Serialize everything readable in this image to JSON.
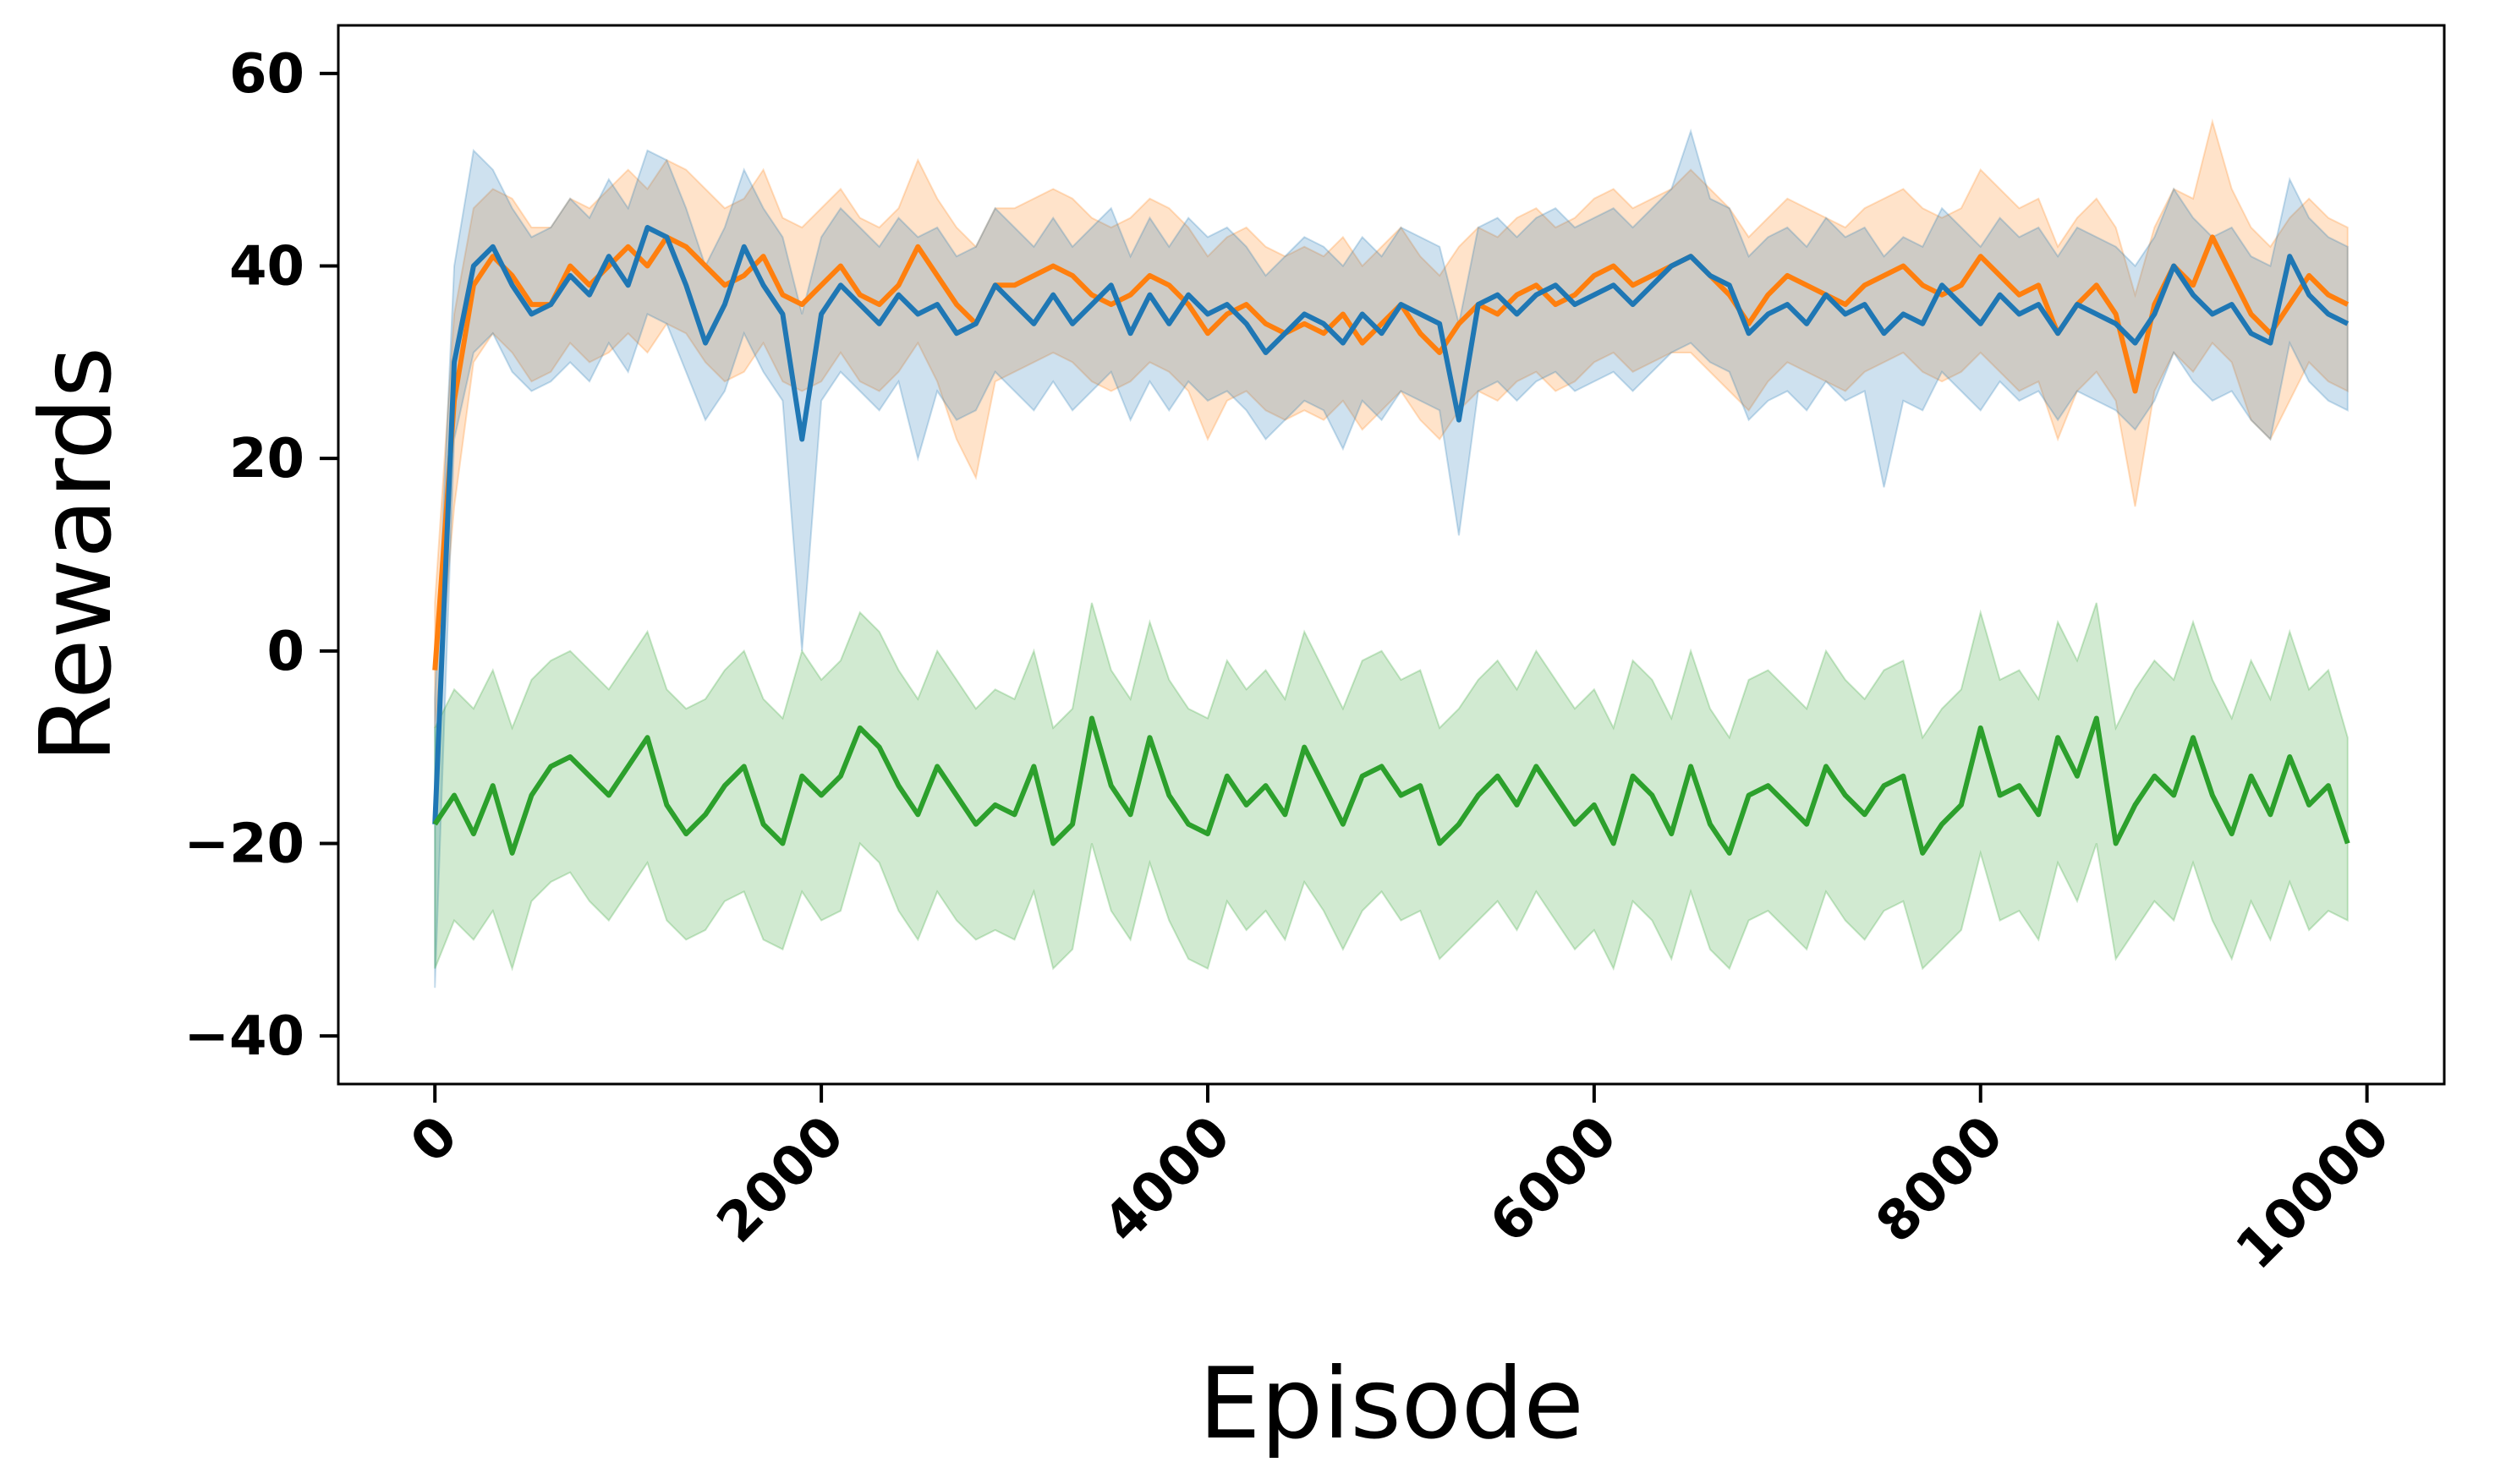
{
  "chart_data": {
    "type": "line",
    "title": "",
    "xlabel": "Episode",
    "ylabel": "Rewards",
    "xlim": [
      -500,
      10400
    ],
    "ylim": [
      -45,
      65
    ],
    "x_ticks": [
      0,
      2000,
      4000,
      6000,
      8000,
      10000
    ],
    "x_tick_labels": [
      "0",
      "2000",
      "4000",
      "6000",
      "8000",
      "10000"
    ],
    "y_ticks": [
      -40,
      -20,
      0,
      20,
      40,
      60
    ],
    "y_tick_labels": [
      "−40",
      "−20",
      "0",
      "20",
      "40",
      "60"
    ],
    "grid": false,
    "legend": "none",
    "x": [
      0,
      100,
      200,
      300,
      400,
      500,
      600,
      700,
      800,
      900,
      1000,
      1100,
      1200,
      1300,
      1400,
      1500,
      1600,
      1700,
      1800,
      1900,
      2000,
      2100,
      2200,
      2300,
      2400,
      2500,
      2600,
      2700,
      2800,
      2900,
      3000,
      3100,
      3200,
      3300,
      3400,
      3500,
      3600,
      3700,
      3800,
      3900,
      4000,
      4100,
      4200,
      4300,
      4400,
      4500,
      4600,
      4700,
      4800,
      4900,
      5000,
      5100,
      5200,
      5300,
      5400,
      5500,
      5600,
      5700,
      5800,
      5900,
      6000,
      6100,
      6200,
      6300,
      6400,
      6500,
      6600,
      6700,
      6800,
      6900,
      7000,
      7100,
      7200,
      7300,
      7400,
      7500,
      7600,
      7700,
      7800,
      7900,
      8000,
      8100,
      8200,
      8300,
      8400,
      8500,
      8600,
      8700,
      8800,
      8900,
      9000,
      9100,
      9200,
      9300,
      9400,
      9500,
      9600,
      9700,
      9800,
      9900
    ],
    "series": [
      {
        "color": "#ff7f0e",
        "values": [
          -2,
          26,
          38,
          41,
          39,
          36,
          36,
          40,
          38,
          40,
          42,
          40,
          43,
          42,
          40,
          38,
          39,
          41,
          37,
          36,
          38,
          40,
          37,
          36,
          38,
          42,
          39,
          36,
          34,
          38,
          38,
          39,
          40,
          39,
          37,
          36,
          37,
          39,
          38,
          36,
          33,
          35,
          36,
          34,
          33,
          34,
          33,
          35,
          32,
          34,
          36,
          33,
          31,
          34,
          36,
          35,
          37,
          38,
          36,
          37,
          39,
          40,
          38,
          39,
          40,
          41,
          39,
          37,
          34,
          37,
          39,
          38,
          37,
          36,
          38,
          39,
          40,
          38,
          37,
          38,
          41,
          39,
          37,
          38,
          33,
          36,
          38,
          35,
          27,
          36,
          40,
          38,
          43,
          39,
          35,
          33,
          36,
          39,
          37,
          36
        ],
        "band_lower": [
          -8,
          15,
          30,
          33,
          31,
          28,
          29,
          32,
          30,
          31,
          33,
          31,
          34,
          33,
          30,
          28,
          29,
          32,
          28,
          27,
          28,
          31,
          28,
          27,
          29,
          32,
          28,
          22,
          18,
          28,
          29,
          30,
          31,
          30,
          28,
          27,
          28,
          30,
          29,
          27,
          22,
          26,
          27,
          25,
          24,
          25,
          24,
          26,
          23,
          25,
          27,
          24,
          22,
          25,
          27,
          26,
          28,
          29,
          27,
          28,
          30,
          31,
          29,
          30,
          31,
          31,
          29,
          27,
          25,
          28,
          30,
          29,
          28,
          27,
          29,
          30,
          31,
          29,
          28,
          29,
          31,
          29,
          27,
          28,
          22,
          27,
          29,
          26,
          15,
          27,
          31,
          29,
          32,
          30,
          24,
          22,
          26,
          30,
          28,
          27
        ],
        "band_upper": [
          5,
          35,
          46,
          48,
          47,
          44,
          44,
          47,
          46,
          48,
          50,
          48,
          51,
          50,
          48,
          46,
          47,
          50,
          45,
          44,
          46,
          48,
          45,
          44,
          46,
          51,
          47,
          44,
          42,
          46,
          46,
          47,
          48,
          47,
          45,
          44,
          45,
          47,
          46,
          44,
          41,
          43,
          44,
          42,
          41,
          42,
          41,
          43,
          40,
          42,
          44,
          41,
          39,
          42,
          44,
          43,
          45,
          46,
          44,
          45,
          47,
          48,
          46,
          47,
          48,
          50,
          48,
          46,
          43,
          45,
          47,
          46,
          45,
          44,
          46,
          47,
          48,
          46,
          45,
          46,
          50,
          48,
          46,
          47,
          42,
          45,
          47,
          44,
          37,
          44,
          48,
          47,
          55,
          48,
          44,
          42,
          45,
          47,
          45,
          44
        ]
      },
      {
        "color": "#1f77b4",
        "values": [
          -18,
          30,
          40,
          42,
          38,
          35,
          36,
          39,
          37,
          41,
          38,
          44,
          43,
          38,
          32,
          36,
          42,
          38,
          35,
          22,
          35,
          38,
          36,
          34,
          37,
          35,
          36,
          33,
          34,
          38,
          36,
          34,
          37,
          34,
          36,
          38,
          33,
          37,
          34,
          37,
          35,
          36,
          34,
          31,
          33,
          35,
          34,
          32,
          35,
          33,
          36,
          35,
          34,
          24,
          36,
          37,
          35,
          37,
          38,
          36,
          37,
          38,
          36,
          38,
          40,
          41,
          39,
          38,
          33,
          35,
          36,
          34,
          37,
          35,
          36,
          33,
          35,
          34,
          38,
          36,
          34,
          37,
          35,
          36,
          33,
          36,
          35,
          34,
          32,
          35,
          40,
          37,
          35,
          36,
          33,
          32,
          41,
          37,
          35,
          34
        ],
        "band_lower": [
          -35,
          22,
          31,
          33,
          29,
          27,
          28,
          30,
          28,
          32,
          29,
          35,
          34,
          29,
          24,
          27,
          33,
          29,
          26,
          0,
          26,
          29,
          27,
          25,
          28,
          20,
          27,
          24,
          25,
          29,
          27,
          25,
          28,
          25,
          27,
          29,
          24,
          28,
          25,
          28,
          26,
          27,
          25,
          22,
          24,
          26,
          25,
          21,
          26,
          24,
          27,
          26,
          25,
          12,
          27,
          28,
          26,
          28,
          29,
          27,
          28,
          29,
          27,
          29,
          31,
          32,
          30,
          29,
          24,
          26,
          27,
          25,
          28,
          26,
          27,
          17,
          26,
          25,
          29,
          27,
          25,
          28,
          26,
          27,
          24,
          27,
          26,
          25,
          23,
          26,
          31,
          28,
          26,
          27,
          24,
          22,
          32,
          28,
          26,
          25
        ],
        "band_upper": [
          -5,
          40,
          52,
          50,
          46,
          43,
          44,
          47,
          45,
          49,
          46,
          52,
          51,
          46,
          40,
          44,
          50,
          46,
          43,
          35,
          43,
          46,
          44,
          42,
          45,
          43,
          44,
          41,
          42,
          46,
          44,
          42,
          45,
          42,
          44,
          46,
          41,
          45,
          42,
          45,
          43,
          44,
          42,
          39,
          41,
          43,
          42,
          40,
          43,
          41,
          44,
          43,
          42,
          34,
          44,
          45,
          43,
          45,
          46,
          44,
          45,
          46,
          44,
          46,
          48,
          54,
          47,
          46,
          41,
          43,
          44,
          42,
          45,
          43,
          44,
          41,
          43,
          42,
          46,
          44,
          42,
          45,
          43,
          44,
          41,
          44,
          43,
          42,
          40,
          43,
          48,
          45,
          43,
          44,
          41,
          40,
          49,
          45,
          43,
          42
        ]
      },
      {
        "color": "#2ca02c",
        "values": [
          -18,
          -15,
          -19,
          -14,
          -21,
          -15,
          -12,
          -11,
          -13,
          -15,
          -12,
          -9,
          -16,
          -19,
          -17,
          -14,
          -12,
          -18,
          -20,
          -13,
          -15,
          -13,
          -8,
          -10,
          -14,
          -17,
          -12,
          -15,
          -18,
          -16,
          -17,
          -12,
          -20,
          -18,
          -7,
          -14,
          -17,
          -9,
          -15,
          -18,
          -19,
          -13,
          -16,
          -14,
          -17,
          -10,
          -14,
          -18,
          -13,
          -12,
          -15,
          -14,
          -20,
          -18,
          -15,
          -13,
          -16,
          -12,
          -15,
          -18,
          -16,
          -20,
          -13,
          -15,
          -19,
          -12,
          -18,
          -21,
          -15,
          -14,
          -16,
          -18,
          -12,
          -15,
          -17,
          -14,
          -13,
          -21,
          -18,
          -16,
          -8,
          -15,
          -14,
          -17,
          -9,
          -13,
          -7,
          -20,
          -16,
          -13,
          -15,
          -9,
          -15,
          -19,
          -13,
          -17,
          -11,
          -16,
          -14,
          -20
        ],
        "band_lower": [
          -33,
          -28,
          -30,
          -27,
          -33,
          -26,
          -24,
          -23,
          -26,
          -28,
          -25,
          -22,
          -28,
          -30,
          -29,
          -26,
          -25,
          -30,
          -31,
          -25,
          -28,
          -27,
          -20,
          -22,
          -27,
          -30,
          -25,
          -28,
          -30,
          -29,
          -30,
          -25,
          -33,
          -31,
          -20,
          -27,
          -30,
          -22,
          -28,
          -32,
          -33,
          -26,
          -29,
          -27,
          -30,
          -24,
          -27,
          -31,
          -27,
          -25,
          -28,
          -27,
          -32,
          -30,
          -28,
          -26,
          -29,
          -25,
          -28,
          -31,
          -29,
          -33,
          -26,
          -28,
          -32,
          -25,
          -31,
          -33,
          -28,
          -27,
          -29,
          -31,
          -25,
          -28,
          -30,
          -27,
          -26,
          -33,
          -31,
          -29,
          -21,
          -28,
          -27,
          -30,
          -22,
          -26,
          -20,
          -32,
          -29,
          -26,
          -28,
          -22,
          -28,
          -32,
          -26,
          -30,
          -24,
          -29,
          -27,
          -28
        ],
        "band_upper": [
          -8,
          -4,
          -6,
          -2,
          -8,
          -3,
          -1,
          0,
          -2,
          -4,
          -1,
          2,
          -4,
          -6,
          -5,
          -2,
          0,
          -5,
          -7,
          0,
          -3,
          -1,
          4,
          2,
          -2,
          -5,
          0,
          -3,
          -6,
          -4,
          -5,
          0,
          -8,
          -6,
          5,
          -2,
          -5,
          3,
          -3,
          -6,
          -7,
          -1,
          -4,
          -2,
          -5,
          2,
          -2,
          -6,
          -1,
          0,
          -3,
          -2,
          -8,
          -6,
          -3,
          -1,
          -4,
          0,
          -3,
          -6,
          -4,
          -8,
          -1,
          -3,
          -7,
          0,
          -6,
          -9,
          -3,
          -2,
          -4,
          -6,
          0,
          -3,
          -5,
          -2,
          -1,
          -9,
          -6,
          -4,
          4,
          -3,
          -2,
          -5,
          3,
          -1,
          5,
          -8,
          -4,
          -1,
          -3,
          3,
          -3,
          -7,
          -1,
          -5,
          2,
          -4,
          -2,
          -9
        ]
      }
    ]
  }
}
